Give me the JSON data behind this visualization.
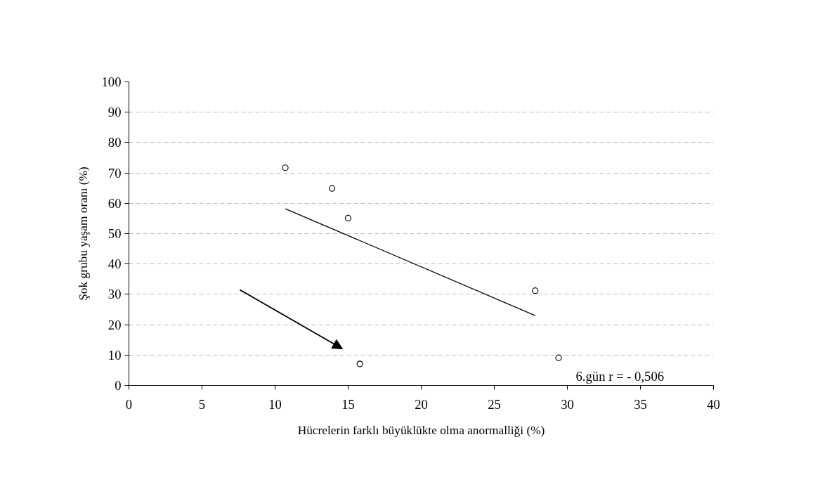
{
  "chart_data": {
    "type": "scatter",
    "xlabel": "Hücrelerin farklı büyüklükte olma anormalliği (%)",
    "ylabel": "Şok grubu yaşam oranı (%)",
    "series": [
      {
        "color": "#000000",
        "marker": "circle",
        "x": [
          10.7,
          13.9,
          15.0,
          27.8,
          15.8,
          29.4
        ],
        "values": [
          71.7,
          64.9,
          55.1,
          31.2,
          7.1,
          9.1
        ]
      },
      {
        "type": "line",
        "color": "#000000",
        "x": [
          10.7,
          27.8
        ],
        "values": [
          58.2,
          23.0
        ]
      }
    ],
    "xlim": [
      0,
      40
    ],
    "xticks": [
      0,
      5,
      10,
      15,
      20,
      25,
      30,
      35,
      40
    ],
    "ylim": [
      0,
      100
    ],
    "yticks": [
      0,
      10,
      20,
      30,
      40,
      50,
      60,
      70,
      80,
      90,
      100
    ],
    "grid": "y",
    "line_style": "solid",
    "annotations": [
      "6.gün r = - 0,506"
    ]
  }
}
